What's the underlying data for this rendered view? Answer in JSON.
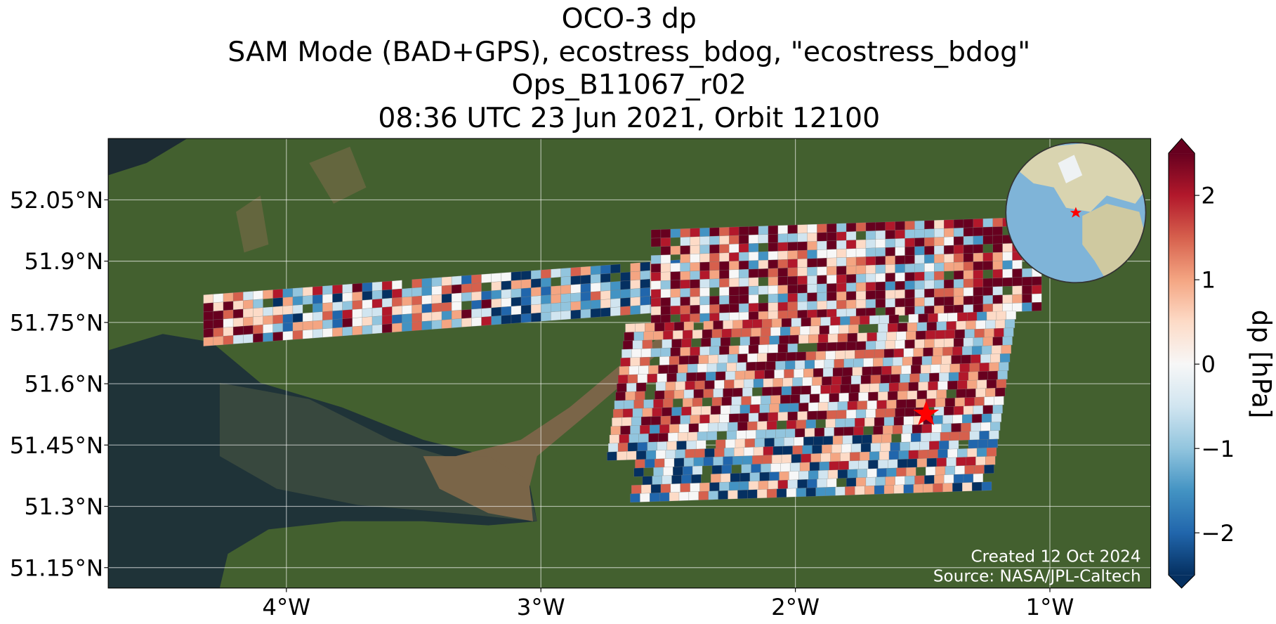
{
  "title": [
    "OCO-3 dp",
    "SAM Mode (BAD+GPS), ecostress_bdog, \"ecostress_bdog\"",
    "Ops_B11067_r02",
    "08:36 UTC 23 Jun 2021, Orbit 12100"
  ],
  "map": {
    "lon_range": [
      -4.7,
      -0.604
    ],
    "lat_range": [
      51.1,
      52.2
    ],
    "lon_ticks": [
      {
        "value": -4,
        "label": "4°W"
      },
      {
        "value": -3,
        "label": "3°W"
      },
      {
        "value": -2,
        "label": "2°W"
      },
      {
        "value": -1,
        "label": "1°W"
      }
    ],
    "lat_ticks": [
      {
        "value": 52.05,
        "label": "52.05°N"
      },
      {
        "value": 51.9,
        "label": "51.9°N"
      },
      {
        "value": 51.75,
        "label": "51.75°N"
      },
      {
        "value": 51.6,
        "label": "51.6°N"
      },
      {
        "value": 51.45,
        "label": "51.45°N"
      },
      {
        "value": 51.3,
        "label": "51.3°N"
      },
      {
        "value": 51.15,
        "label": "51.15°N"
      }
    ],
    "grid": true
  },
  "colorbar": {
    "label": "dp [hPa]",
    "range": [
      -2.5,
      2.5
    ],
    "ticks": [
      2,
      1,
      0,
      {
        "value": -1,
        "label": "−1"
      },
      {
        "value": -2,
        "label": "−2"
      }
    ],
    "colormap": [
      "#053061",
      "#2166ac",
      "#4393c3",
      "#92c5de",
      "#d1e5f0",
      "#f7f7f7",
      "#fddbc7",
      "#f4a582",
      "#d6604d",
      "#b2182b",
      "#67001f"
    ]
  },
  "credits": [
    "Created 12 Oct 2024",
    "Source: NASA/JPL-Caltech"
  ]
}
